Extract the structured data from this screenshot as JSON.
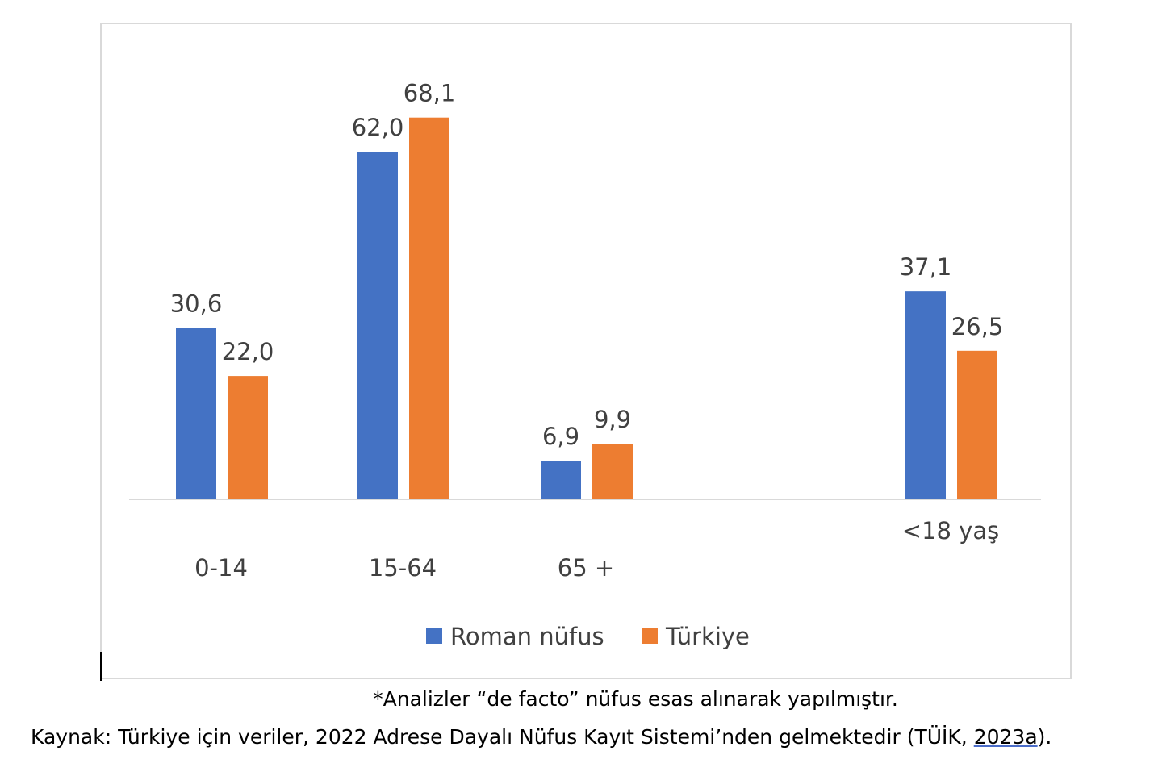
{
  "chart_data": {
    "type": "bar",
    "categories": [
      "0-14",
      "15-64",
      "65 +",
      "<18 yaş"
    ],
    "series": [
      {
        "name": "Roman nüfus",
        "color": "#4472c4",
        "values": [
          30.6,
          62.0,
          6.9,
          37.1
        ],
        "labels": [
          "30,6",
          "62,0",
          "6,9",
          "37,1"
        ]
      },
      {
        "name": "Türkiye",
        "color": "#ed7d31",
        "values": [
          22.0,
          68.1,
          9.9,
          26.5
        ],
        "labels": [
          "22,0",
          "68,1",
          "9,9",
          "26,5"
        ]
      }
    ],
    "title": "",
    "xlabel": "",
    "ylabel": "",
    "ylim": [
      0,
      80
    ],
    "grid": false,
    "legend": "bottom"
  },
  "notes": {
    "analysis_note": "*Analizler “de facto” nüfus esas alınarak yapılmıştır.",
    "source_prefix": "Kaynak: Türkiye için veriler, 2022 Adrese Dayalı Nüfus Kayıt Sistemi’nden gelmektedir (TÜİK, ",
    "source_ref": "2023a",
    "source_suffix": ")."
  }
}
